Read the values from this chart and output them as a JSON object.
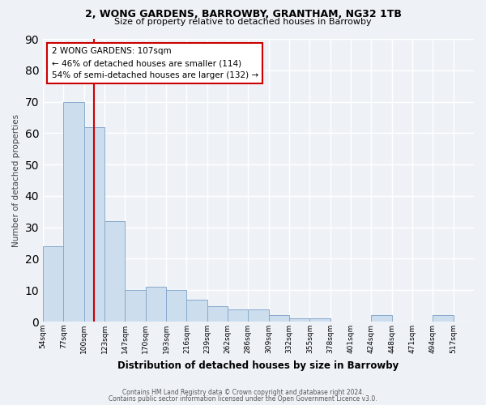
{
  "title1": "2, WONG GARDENS, BARROWBY, GRANTHAM, NG32 1TB",
  "title2": "Size of property relative to detached houses in Barrowby",
  "xlabel": "Distribution of detached houses by size in Barrowby",
  "ylabel": "Number of detached properties",
  "categories": [
    "54sqm",
    "77sqm",
    "100sqm",
    "123sqm",
    "147sqm",
    "170sqm",
    "193sqm",
    "216sqm",
    "239sqm",
    "262sqm",
    "286sqm",
    "309sqm",
    "332sqm",
    "355sqm",
    "378sqm",
    "401sqm",
    "424sqm",
    "448sqm",
    "471sqm",
    "494sqm",
    "517sqm"
  ],
  "bar_values": [
    24,
    70,
    62,
    32,
    10,
    11,
    10,
    7,
    5,
    4,
    4,
    2,
    1,
    1,
    0,
    0,
    2,
    0,
    0,
    2,
    0
  ],
  "bar_color": "#ccdded",
  "bar_edge_color": "#88aacc",
  "vline_color": "#cc0000",
  "vline_index": 2.5,
  "annotation_text": "2 WONG GARDENS: 107sqm\n← 46% of detached houses are smaller (114)\n54% of semi-detached houses are larger (132) →",
  "annotation_box_color": "#ffffff",
  "annotation_box_edge": "#cc0000",
  "ylim": [
    0,
    90
  ],
  "yticks": [
    0,
    10,
    20,
    30,
    40,
    50,
    60,
    70,
    80,
    90
  ],
  "footer1": "Contains HM Land Registry data © Crown copyright and database right 2024.",
  "footer2": "Contains public sector information licensed under the Open Government Licence v3.0.",
  "bg_color": "#eef2f7",
  "grid_color": "#ffffff"
}
